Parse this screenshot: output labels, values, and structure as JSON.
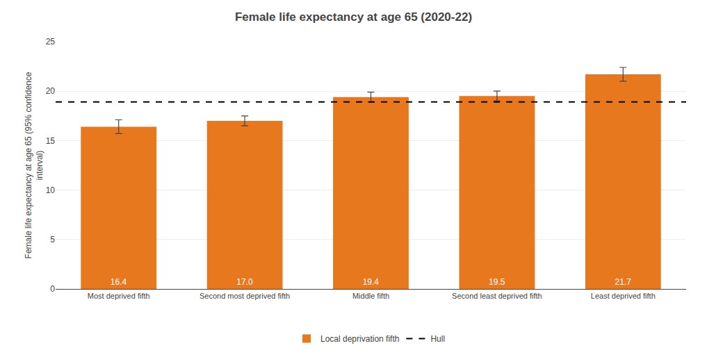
{
  "chart_data": {
    "type": "bar",
    "title": "Female life expectancy at age 65 (2020-22)",
    "ylabel": "Female life expectancy at age 65 (95% confidence\ninterval)",
    "categories": [
      "Most deprived fifth",
      "Second most deprived fifth",
      "Middle fifth",
      "Second least deprived fifth",
      "Least deprived fifth"
    ],
    "series": [
      {
        "name": "Local deprivation fifth",
        "color": "#E8781E",
        "values": [
          16.4,
          17.0,
          19.4,
          19.5,
          21.7
        ],
        "value_labels": [
          "16.4",
          "17.0",
          "19.4",
          "19.5",
          "21.7"
        ],
        "error_lower": [
          0.7,
          0.5,
          0.5,
          0.5,
          0.7
        ],
        "error_upper": [
          0.7,
          0.5,
          0.5,
          0.5,
          0.7
        ]
      }
    ],
    "hlines": [
      {
        "name": "Hull",
        "value": 18.9,
        "color": "#000000",
        "line_style": "dashed"
      }
    ],
    "ylim": [
      0,
      25
    ],
    "yticks": [
      0,
      5,
      10,
      15,
      20,
      25
    ],
    "grid": true,
    "data_labels": true,
    "legend": "bottom"
  }
}
